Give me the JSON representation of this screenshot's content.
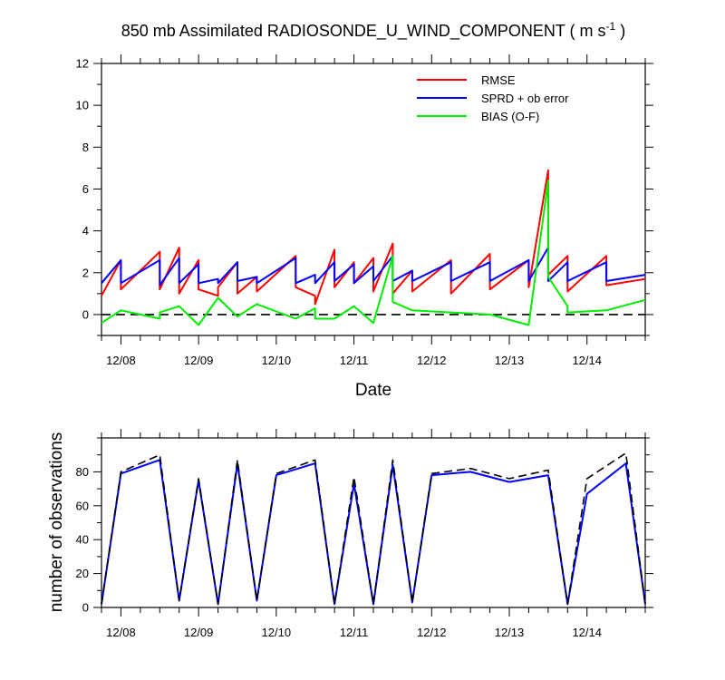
{
  "chart_data": [
    {
      "type": "line",
      "title_main": "850 mb Assimilated RADIOSONDE_U_WIND_COMPONENT ( m s",
      "title_sup": "-1",
      "title_end": " )",
      "xlabel": "Date",
      "ylabel": "",
      "xlim": [
        0,
        7
      ],
      "ylim": [
        -1,
        12
      ],
      "yticks": [
        0,
        2,
        4,
        6,
        8,
        10,
        12
      ],
      "xtick_positions": [
        0.25,
        1.25,
        2.25,
        3.25,
        4.25,
        5.25,
        6.25
      ],
      "xtick_labels": [
        "12/08",
        "12/09",
        "12/10",
        "12/11",
        "12/12",
        "12/13",
        "12/14"
      ],
      "zero_line": 0,
      "colors": {
        "RMSE": "#ff0000",
        "SPRD + ob error": "#0000ff",
        "BIAS (O-F)": "#00ee00",
        "zero": "#000000"
      },
      "series": [
        {
          "name": "RMSE",
          "x": [
            0,
            0.25,
            0.25,
            0.75,
            0.75,
            1,
            1,
            1.25,
            1.25,
            1.5,
            1.5,
            1.75,
            1.75,
            2,
            2,
            2.5,
            2.5,
            2.75,
            2.75,
            3,
            3,
            3.25,
            3.25,
            3.5,
            3.5,
            3.75,
            3.75,
            4,
            4,
            4.5,
            4.5,
            5,
            5,
            5.5,
            5.5,
            5.75,
            5.75,
            6,
            6,
            6.5,
            6.5,
            7
          ],
          "y": [
            0.9,
            2.6,
            1.2,
            3.0,
            1.2,
            3.2,
            1.0,
            2.6,
            1.2,
            0.9,
            1.3,
            2.5,
            1.0,
            1.8,
            1.1,
            2.8,
            1.3,
            0.9,
            0.5,
            3.1,
            1.3,
            2.5,
            1.5,
            2.7,
            1.1,
            3.4,
            1.0,
            2.1,
            1.1,
            2.6,
            1.0,
            2.9,
            1.2,
            2.6,
            1.3,
            6.9,
            1.9,
            2.8,
            1.1,
            2.8,
            1.4,
            1.7
          ]
        },
        {
          "name": "SPRD + ob error",
          "x": [
            0,
            0.25,
            0.25,
            0.75,
            0.75,
            1,
            1,
            1.25,
            1.25,
            1.5,
            1.5,
            1.75,
            1.75,
            2,
            2,
            2.5,
            2.5,
            2.75,
            2.75,
            3,
            3,
            3.25,
            3.25,
            3.5,
            3.5,
            3.75,
            3.75,
            4,
            4,
            4.5,
            4.5,
            5,
            5,
            5.5,
            5.5,
            5.75,
            5.75,
            6,
            6,
            6.5,
            6.5,
            7
          ],
          "y": [
            1.5,
            2.6,
            1.5,
            2.6,
            1.4,
            2.7,
            1.5,
            2.4,
            1.5,
            1.7,
            1.5,
            2.5,
            1.6,
            1.8,
            1.5,
            2.7,
            1.5,
            1.9,
            1.5,
            2.5,
            1.6,
            2.4,
            1.5,
            2.3,
            1.6,
            2.8,
            1.6,
            2.1,
            1.6,
            2.5,
            1.6,
            2.5,
            1.6,
            2.6,
            1.6,
            3.2,
            1.6,
            2.5,
            1.6,
            2.5,
            1.6,
            1.9
          ]
        },
        {
          "name": "BIAS (O-F)",
          "x": [
            0,
            0.25,
            0.5,
            0.75,
            0.75,
            1,
            1.25,
            1.5,
            1.75,
            2,
            2.5,
            2.75,
            2.75,
            3,
            3.25,
            3.5,
            3.5,
            3.75,
            3.75,
            4,
            4.5,
            5,
            5.5,
            5.75,
            5.75,
            6,
            6,
            6.5,
            7
          ],
          "y": [
            -0.4,
            0.2,
            0.0,
            -0.2,
            0.1,
            0.4,
            -0.5,
            0.8,
            -0.1,
            0.5,
            -0.2,
            0.3,
            -0.2,
            -0.2,
            0.4,
            -0.4,
            -0.4,
            2.8,
            0.6,
            0.2,
            0.1,
            0.0,
            -0.5,
            6.4,
            1.8,
            0.4,
            0.1,
            0.2,
            0.7
          ]
        }
      ],
      "legend": [
        "RMSE",
        "SPRD + ob error",
        "BIAS (O-F)"
      ],
      "legend_position": "top-right"
    },
    {
      "type": "line",
      "ylabel": "number of observations",
      "xlim": [
        0,
        7
      ],
      "ylim": [
        0,
        100
      ],
      "yticks": [
        0,
        20,
        40,
        60,
        80
      ],
      "xtick_positions": [
        0.25,
        1.25,
        2.25,
        3.25,
        4.25,
        5.25,
        6.25
      ],
      "xtick_labels": [
        "12/08",
        "12/09",
        "12/10",
        "12/11",
        "12/12",
        "12/13",
        "12/14"
      ],
      "colors": {
        "assimilated": "#0000ff",
        "total": "#000000"
      },
      "series": [
        {
          "name": "assimilated",
          "x": [
            0,
            0.25,
            0.75,
            1,
            1.25,
            1.5,
            1.75,
            2,
            2.25,
            2.75,
            3,
            3.25,
            3.5,
            3.75,
            4,
            4.25,
            4.75,
            5.25,
            5.75,
            6,
            6.25,
            6.75,
            7
          ],
          "y": [
            2,
            79,
            87,
            4,
            75,
            2,
            85,
            4,
            78,
            85,
            2,
            73,
            2,
            84,
            3,
            78,
            80,
            74,
            78,
            2,
            67,
            85,
            2
          ]
        },
        {
          "name": "total",
          "x": [
            0,
            0.25,
            0.75,
            1,
            1.25,
            1.5,
            1.75,
            2,
            2.25,
            2.75,
            3,
            3.25,
            3.5,
            3.75,
            4,
            4.25,
            4.75,
            5.25,
            5.75,
            6,
            6.25,
            6.75,
            7
          ],
          "y": [
            2,
            80,
            90,
            4,
            76,
            2,
            87,
            4,
            79,
            87,
            2,
            77,
            2,
            87,
            3,
            79,
            82,
            76,
            81,
            2,
            76,
            91,
            2
          ]
        }
      ]
    }
  ]
}
